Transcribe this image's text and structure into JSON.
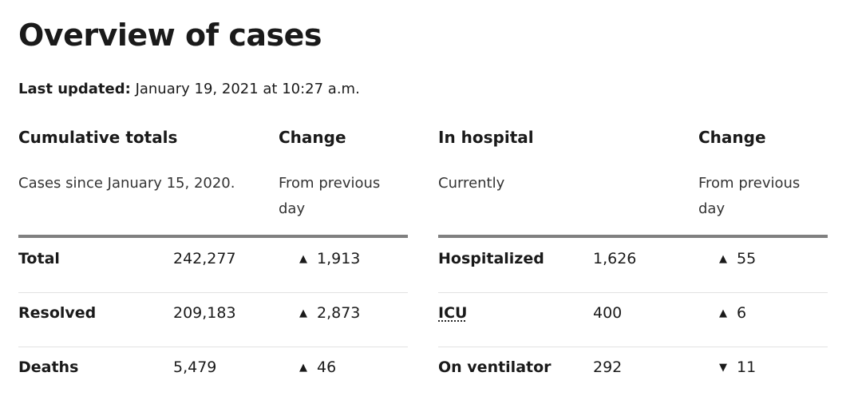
{
  "title": "Overview of cases",
  "last_updated": {
    "label": "Last updated:",
    "value": "January 19, 2021 at 10:27 a.m."
  },
  "cumulative": {
    "heading": "Cumulative totals",
    "subheading": "Cases since January 15, 2020.",
    "change_heading": "Change",
    "change_subheading": "From previous day",
    "rows": [
      {
        "label": "Total",
        "value": "242,277",
        "change": "1,913",
        "direction": "up",
        "arrow": "▲"
      },
      {
        "label": "Resolved",
        "value": "209,183",
        "change": "2,873",
        "direction": "up",
        "arrow": "▲"
      },
      {
        "label": "Deaths",
        "value": "5,479",
        "change": "46",
        "direction": "up",
        "arrow": "▲"
      }
    ]
  },
  "hospital": {
    "heading": "In hospital",
    "subheading": "Currently",
    "change_heading": "Change",
    "change_subheading": "From previous day",
    "rows": [
      {
        "label": "Hospitalized",
        "value": "1,626",
        "change": "55",
        "direction": "up",
        "arrow": "▲"
      },
      {
        "label": "ICU",
        "value": "400",
        "change": "6",
        "direction": "up",
        "arrow": "▲"
      },
      {
        "label": "On ventilator",
        "value": "292",
        "change": "11",
        "direction": "down",
        "arrow": "▼"
      }
    ]
  }
}
